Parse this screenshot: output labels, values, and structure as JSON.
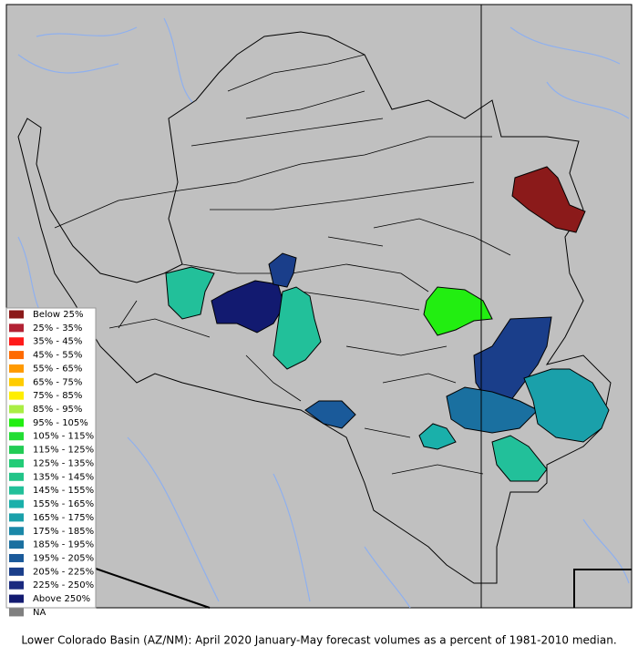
{
  "legend": [
    {
      "label": "Below 25%",
      "color": "#8b1a1a"
    },
    {
      "label": "25% -  35%",
      "color": "#b22234"
    },
    {
      "label": "35% -  45%",
      "color": "#ff1a1a"
    },
    {
      "label": "45% -  55%",
      "color": "#ff6a00"
    },
    {
      "label": "55% -  65%",
      "color": "#ff9a00"
    },
    {
      "label": "65% -  75%",
      "color": "#ffcc00"
    },
    {
      "label": "75% -  85%",
      "color": "#ffee00"
    },
    {
      "label": "85% -  95%",
      "color": "#aaee44"
    },
    {
      "label": "95% -  105%",
      "color": "#22ee11"
    },
    {
      "label": "105% - 115%",
      "color": "#22dd33"
    },
    {
      "label": "115% - 125%",
      "color": "#22cc55"
    },
    {
      "label": "125% - 135%",
      "color": "#22cc77"
    },
    {
      "label": "135% - 145%",
      "color": "#22c488"
    },
    {
      "label": "145% - 155%",
      "color": "#22c09a"
    },
    {
      "label": "155% - 165%",
      "color": "#1ab0aa"
    },
    {
      "label": "165% - 175%",
      "color": "#1aa0aa"
    },
    {
      "label": "175% - 185%",
      "color": "#1a88a8"
    },
    {
      "label": "185% - 195%",
      "color": "#1a70a0"
    },
    {
      "label": "195% - 205%",
      "color": "#1a5a9a"
    },
    {
      "label": "205% - 225%",
      "color": "#1a3e8a"
    },
    {
      "label": "225% - 250%",
      "color": "#1a2a80"
    },
    {
      "label": "Above 250%",
      "color": "#121a70"
    },
    {
      "label": "NA",
      "color": "#808080"
    }
  ],
  "caption": "Lower Colorado Basin (AZ/NM): April 2020 January-May forecast volumes as a percent of 1981-2010 median."
}
